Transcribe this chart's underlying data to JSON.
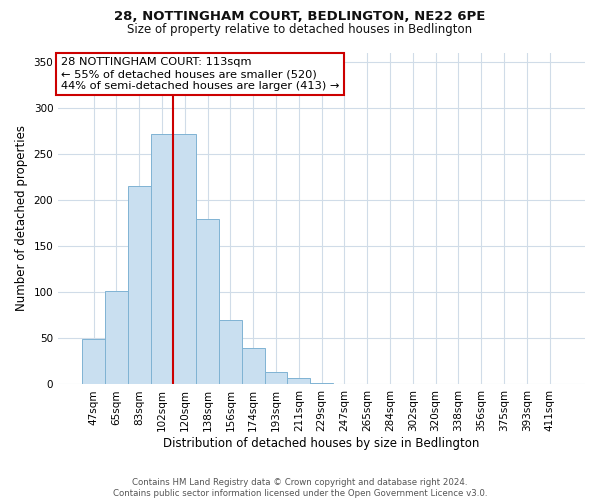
{
  "title1": "28, NOTTINGHAM COURT, BEDLINGTON, NE22 6PE",
  "title2": "Size of property relative to detached houses in Bedlington",
  "xlabel": "Distribution of detached houses by size in Bedlington",
  "ylabel": "Number of detached properties",
  "bar_labels": [
    "47sqm",
    "65sqm",
    "83sqm",
    "102sqm",
    "120sqm",
    "138sqm",
    "156sqm",
    "174sqm",
    "193sqm",
    "211sqm",
    "229sqm",
    "247sqm",
    "265sqm",
    "284sqm",
    "302sqm",
    "320sqm",
    "338sqm",
    "356sqm",
    "375sqm",
    "393sqm",
    "411sqm"
  ],
  "bar_values": [
    49,
    101,
    215,
    272,
    272,
    179,
    70,
    40,
    14,
    7,
    2,
    0,
    0,
    1,
    0,
    0,
    1,
    0,
    0,
    0,
    1
  ],
  "bar_color": "#c9dff0",
  "bar_edge_color": "#7fb3d3",
  "vline_color": "#cc0000",
  "vline_bar_index": 4,
  "ylim": [
    0,
    360
  ],
  "yticks": [
    0,
    50,
    100,
    150,
    200,
    250,
    300,
    350
  ],
  "annotation_title": "28 NOTTINGHAM COURT: 113sqm",
  "annotation_line1": "← 55% of detached houses are smaller (520)",
  "annotation_line2": "44% of semi-detached houses are larger (413) →",
  "annotation_box_color": "#ffffff",
  "annotation_box_edge": "#cc0000",
  "footer1": "Contains HM Land Registry data © Crown copyright and database right 2024.",
  "footer2": "Contains public sector information licensed under the Open Government Licence v3.0.",
  "background_color": "#ffffff",
  "grid_color": "#d0dce8"
}
